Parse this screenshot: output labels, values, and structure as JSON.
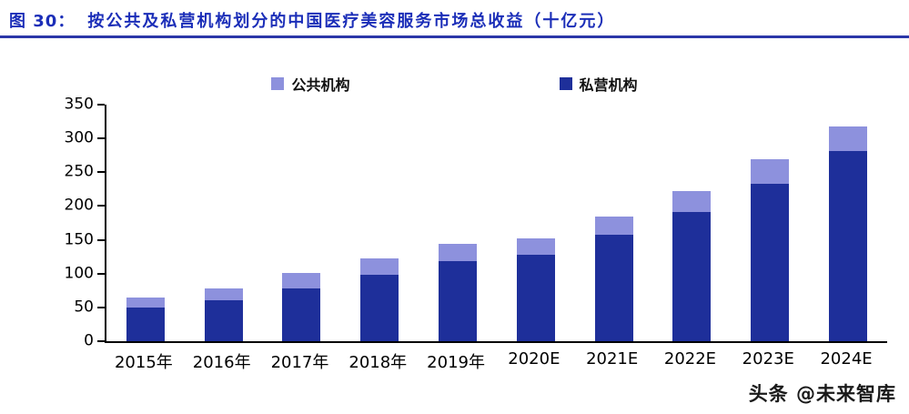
{
  "header": {
    "prefix": "图 30：",
    "title": "按公共及私营机构划分的中国医疗美容服务市场总收益（十亿元）",
    "accent_color": "#1b2eb8"
  },
  "chart_data": {
    "type": "bar",
    "stacked": true,
    "title": "按公共及私营机构划分的中国医疗美容服务市场总收益（十亿元）",
    "categories": [
      "2015年",
      "2016年",
      "2017年",
      "2018年",
      "2019年",
      "2020E",
      "2021E",
      "2022E",
      "2023E",
      "2024E"
    ],
    "series": [
      {
        "name": "私营机构",
        "color": "#1e2f9a",
        "values": [
          50,
          60,
          78,
          98,
          118,
          128,
          157,
          191,
          233,
          281
        ]
      },
      {
        "name": "公共机构",
        "color": "#8d91dd",
        "values": [
          14,
          18,
          23,
          24,
          26,
          24,
          27,
          31,
          36,
          37
        ]
      }
    ],
    "legend": [
      "公共机构",
      "私营机构"
    ],
    "legend_position": "top",
    "xlabel": "",
    "ylabel": "",
    "ylim": [
      0,
      350
    ],
    "yticks": [
      0,
      50,
      100,
      150,
      200,
      250,
      300,
      350
    ],
    "grid": false
  },
  "watermark": "头条 @未来智库"
}
